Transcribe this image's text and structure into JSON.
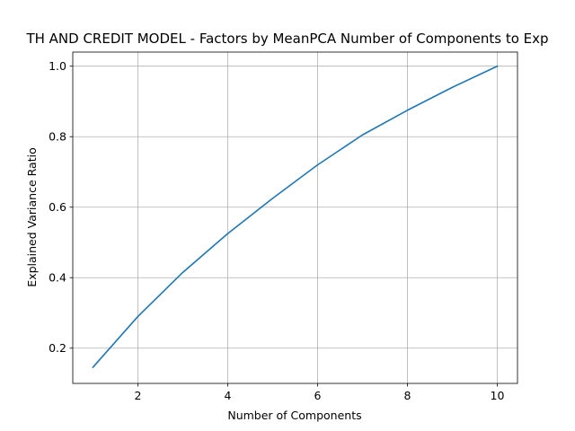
{
  "chart_data": {
    "type": "line",
    "title": "TH AND CREDIT MODEL - Factors by MeanPCA Number of Components to Exp",
    "xlabel": "Number of Components",
    "ylabel": "Explained Variance Ratio",
    "x": [
      1,
      2,
      3,
      4,
      5,
      6,
      7,
      8,
      9,
      10
    ],
    "series": [
      {
        "values": [
          0.146,
          0.29,
          0.415,
          0.525,
          0.625,
          0.72,
          0.805,
          0.875,
          0.94,
          1.0
        ],
        "color": "#1f77b4"
      }
    ],
    "xlim": [
      0.55,
      10.45
    ],
    "ylim": [
      0.1,
      1.04
    ],
    "xticks": [
      2,
      4,
      6,
      8,
      10
    ],
    "yticks": [
      0.2,
      0.4,
      0.6,
      0.8,
      1.0
    ],
    "xtick_labels": [
      "2",
      "4",
      "6",
      "8",
      "10"
    ],
    "ytick_labels": [
      "0.2",
      "0.4",
      "0.6",
      "0.8",
      "1.0"
    ],
    "grid": true,
    "grid_color": "#b0b0b0",
    "axis_color": "#000000"
  }
}
